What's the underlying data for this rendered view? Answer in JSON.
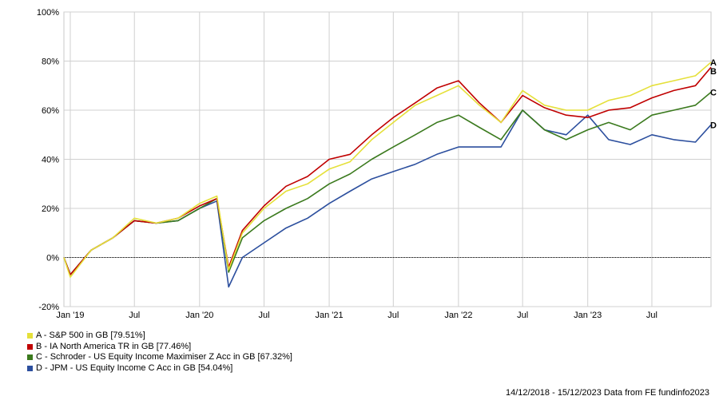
{
  "chart_data": {
    "type": "line",
    "title": "",
    "xlabel": "",
    "ylabel": "",
    "y_unit": "%",
    "ylim": [
      -20,
      100
    ],
    "y_ticks": [
      -20,
      0,
      20,
      40,
      60,
      80,
      100
    ],
    "y_tick_labels": [
      "-20%",
      "0%",
      "20%",
      "40%",
      "60%",
      "80%",
      "100%"
    ],
    "xlim": [
      "2018-12-14",
      "2023-12-15"
    ],
    "x_ticks": [
      "2019-01-01",
      "2019-07-01",
      "2020-01-01",
      "2020-07-01",
      "2021-01-01",
      "2021-07-01",
      "2022-01-01",
      "2022-07-01",
      "2023-01-01",
      "2023-07-01"
    ],
    "x_tick_labels": [
      "Jan '19",
      "Jul",
      "Jan '20",
      "Jul",
      "Jan '21",
      "Jul",
      "Jan '22",
      "Jul",
      "Jan '23",
      "Jul"
    ],
    "grid": true,
    "legend_position": "bottom-left",
    "x": [
      "2018-12-14",
      "2019-01-01",
      "2019-03-01",
      "2019-05-01",
      "2019-07-01",
      "2019-09-01",
      "2019-11-01",
      "2020-01-01",
      "2020-02-19",
      "2020-03-23",
      "2020-05-01",
      "2020-07-01",
      "2020-09-01",
      "2020-11-01",
      "2021-01-01",
      "2021-03-01",
      "2021-05-01",
      "2021-07-01",
      "2021-09-01",
      "2021-11-01",
      "2022-01-01",
      "2022-03-01",
      "2022-05-01",
      "2022-07-01",
      "2022-09-01",
      "2022-11-01",
      "2023-01-01",
      "2023-03-01",
      "2023-05-01",
      "2023-07-01",
      "2023-09-01",
      "2023-11-01",
      "2023-12-15"
    ],
    "series": [
      {
        "name": "A - S&P 500 in GB [79.51%]",
        "label": "A",
        "color": "#e5e03a",
        "values": [
          0,
          -8,
          3,
          8,
          16,
          14,
          16,
          22,
          25,
          -5,
          10,
          20,
          27,
          30,
          36,
          39,
          48,
          55,
          62,
          66,
          70,
          62,
          55,
          68,
          62,
          60,
          60,
          64,
          66,
          70,
          72,
          74,
          79.51
        ]
      },
      {
        "name": "B - IA North America TR in GB [77.46%]",
        "label": "B",
        "color": "#c00000",
        "values": [
          0,
          -7,
          3,
          8,
          15,
          14,
          16,
          21,
          24,
          -4,
          11,
          21,
          29,
          33,
          40,
          42,
          50,
          57,
          63,
          69,
          72,
          63,
          55,
          66,
          61,
          58,
          57,
          60,
          61,
          65,
          68,
          70,
          77.46
        ]
      },
      {
        "name": "C - Schroder - US Equity Income Maximiser Z Acc in GB [67.32%]",
        "label": "C",
        "color": "#3b7a1e",
        "values": [
          0,
          -7,
          3,
          8,
          15,
          14,
          15,
          20,
          24,
          -6,
          8,
          15,
          20,
          24,
          30,
          34,
          40,
          45,
          50,
          55,
          58,
          53,
          48,
          60,
          52,
          48,
          52,
          55,
          52,
          58,
          60,
          62,
          67.32
        ]
      },
      {
        "name": "D - JPM - US Equity Income C Acc in GB [54.04%]",
        "label": "D",
        "color": "#2c4f9e",
        "values": [
          0,
          -7,
          3,
          8,
          15,
          14,
          15,
          20,
          23,
          -12,
          0,
          6,
          12,
          16,
          22,
          27,
          32,
          35,
          38,
          42,
          45,
          45,
          45,
          60,
          52,
          50,
          58,
          48,
          46,
          50,
          48,
          47,
          54.04
        ]
      }
    ]
  },
  "footer": {
    "text": "14/12/2018 - 15/12/2023 Data from FE fundinfo2023"
  }
}
